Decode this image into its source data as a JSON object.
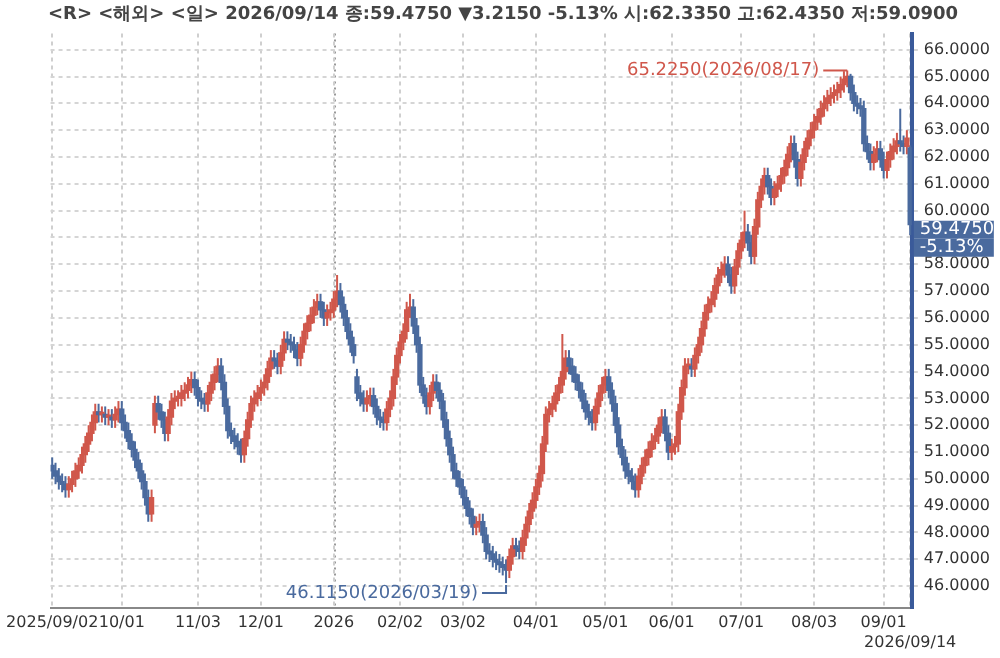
{
  "chart_data": {
    "type": "candlestick",
    "title": "<R> <해외> <일> 2026/09/14 종:59.4750 ▼3.2150 -5.13% 시:62.3350 고:62.4350 저:59.0900",
    "categories": [
      "2025/09/02",
      null,
      null,
      null,
      null,
      null,
      null,
      null,
      null,
      null,
      null,
      null,
      null,
      null,
      null,
      null,
      null,
      null,
      null,
      null,
      null,
      "10/01",
      null,
      null,
      null,
      null,
      null,
      null,
      null,
      null,
      null,
      null,
      null,
      null,
      null,
      null,
      null,
      null,
      null,
      null,
      null,
      null,
      null,
      null,
      "11/03",
      null,
      null,
      null,
      null,
      null,
      null,
      null,
      null,
      null,
      null,
      null,
      null,
      null,
      null,
      null,
      null,
      null,
      null,
      "12/01",
      null,
      null,
      null,
      null,
      null,
      null,
      null,
      null,
      null,
      null,
      null,
      null,
      null,
      null,
      null,
      null,
      null,
      null,
      null,
      null,
      null,
      "2026",
      null,
      null,
      null,
      null,
      null,
      null,
      null,
      null,
      null,
      null,
      null,
      null,
      null,
      null,
      null,
      null,
      null,
      null,
      null,
      "02/02",
      null,
      null,
      null,
      null,
      null,
      null,
      null,
      null,
      null,
      null,
      null,
      null,
      null,
      null,
      null,
      null,
      null,
      null,
      "03/02",
      null,
      null,
      null,
      null,
      null,
      null,
      null,
      null,
      null,
      null,
      null,
      null,
      null,
      null,
      null,
      null,
      null,
      null,
      null,
      null,
      null,
      "04/01",
      null,
      null,
      null,
      null,
      null,
      null,
      null,
      null,
      null,
      null,
      null,
      null,
      null,
      null,
      null,
      null,
      null,
      null,
      null,
      null,
      "05/01",
      null,
      null,
      null,
      null,
      null,
      null,
      null,
      null,
      null,
      null,
      null,
      null,
      null,
      null,
      null,
      null,
      null,
      null,
      null,
      "06/01",
      null,
      null,
      null,
      null,
      null,
      null,
      null,
      null,
      null,
      null,
      null,
      null,
      null,
      null,
      null,
      null,
      null,
      null,
      null,
      null,
      "07/01",
      null,
      null,
      null,
      null,
      null,
      null,
      null,
      null,
      null,
      null,
      null,
      null,
      null,
      null,
      null,
      null,
      null,
      null,
      null,
      null,
      null,
      "08/03",
      null,
      null,
      null,
      null,
      null,
      null,
      null,
      null,
      null,
      null,
      null,
      null,
      null,
      null,
      null,
      null,
      null,
      null,
      null,
      null,
      "09/01",
      null,
      null,
      null,
      null,
      null,
      null,
      null,
      "2026/09/14"
    ],
    "ohlc": [
      [
        50.5,
        50.8,
        50.0,
        50.3
      ],
      [
        50.3,
        50.6,
        49.8,
        50.1
      ],
      [
        50.1,
        50.4,
        49.6,
        49.9
      ],
      [
        49.9,
        50.2,
        49.5,
        49.8
      ],
      [
        49.8,
        50.1,
        49.3,
        49.6
      ],
      [
        49.6,
        50.1,
        49.3,
        49.8
      ],
      [
        49.8,
        50.3,
        49.5,
        50.0
      ],
      [
        50.0,
        50.6,
        49.7,
        50.3
      ],
      [
        50.3,
        50.8,
        50.0,
        50.5
      ],
      [
        50.5,
        51.2,
        50.2,
        50.9
      ],
      [
        50.9,
        51.6,
        50.6,
        51.3
      ],
      [
        51.3,
        52.0,
        51.0,
        51.7
      ],
      [
        51.7,
        52.4,
        51.4,
        52.1
      ],
      [
        52.1,
        52.8,
        51.8,
        52.5
      ],
      [
        52.5,
        52.8,
        52.1,
        52.4
      ],
      [
        52.4,
        52.7,
        52.1,
        52.4
      ],
      [
        52.4,
        52.7,
        52.0,
        52.3
      ],
      [
        52.3,
        52.6,
        52.0,
        52.3
      ],
      [
        52.3,
        52.6,
        51.9,
        52.2
      ],
      [
        52.2,
        52.7,
        51.9,
        52.4
      ],
      [
        52.4,
        52.9,
        52.1,
        52.6
      ],
      [
        52.6,
        52.9,
        51.8,
        52.1
      ],
      [
        52.1,
        52.4,
        51.5,
        51.8
      ],
      [
        51.8,
        52.1,
        51.1,
        51.4
      ],
      [
        51.4,
        51.7,
        50.8,
        51.1
      ],
      [
        51.1,
        51.4,
        50.4,
        50.7
      ],
      [
        50.7,
        51.0,
        50.0,
        50.3
      ],
      [
        50.3,
        50.6,
        49.6,
        49.9
      ],
      [
        49.9,
        50.2,
        49.0,
        49.3
      ],
      [
        49.3,
        49.6,
        48.4,
        48.7
      ],
      [
        48.7,
        49.6,
        48.4,
        49.3
      ],
      [
        52.0,
        53.1,
        51.7,
        52.8
      ],
      [
        52.8,
        53.1,
        52.2,
        52.5
      ],
      [
        52.5,
        52.8,
        51.9,
        52.2
      ],
      [
        52.2,
        52.5,
        51.4,
        51.7
      ],
      [
        51.7,
        52.6,
        51.4,
        52.3
      ],
      [
        52.3,
        53.2,
        52.0,
        52.9
      ],
      [
        52.9,
        53.3,
        52.6,
        53.0
      ],
      [
        53.0,
        53.3,
        52.7,
        53.0
      ],
      [
        53.0,
        53.5,
        52.7,
        53.2
      ],
      [
        53.2,
        53.6,
        52.9,
        53.3
      ],
      [
        53.3,
        53.8,
        53.0,
        53.5
      ],
      [
        53.5,
        54.0,
        53.2,
        53.7
      ],
      [
        53.7,
        54.0,
        53.1,
        53.4
      ],
      [
        53.4,
        53.7,
        52.7,
        53.0
      ],
      [
        53.0,
        53.3,
        52.6,
        52.9
      ],
      [
        52.9,
        53.2,
        52.5,
        52.8
      ],
      [
        52.8,
        53.5,
        52.5,
        53.2
      ],
      [
        53.2,
        53.9,
        52.9,
        53.6
      ],
      [
        53.6,
        54.2,
        53.3,
        53.9
      ],
      [
        53.9,
        54.5,
        53.6,
        54.2
      ],
      [
        54.2,
        54.5,
        53.3,
        53.6
      ],
      [
        53.6,
        53.9,
        52.4,
        52.7
      ],
      [
        52.7,
        53.0,
        51.5,
        51.8
      ],
      [
        51.8,
        52.1,
        51.3,
        51.6
      ],
      [
        51.6,
        51.9,
        51.1,
        51.4
      ],
      [
        51.4,
        51.7,
        50.9,
        51.2
      ],
      [
        51.2,
        51.5,
        50.6,
        50.9
      ],
      [
        50.9,
        51.8,
        50.6,
        51.5
      ],
      [
        51.5,
        52.5,
        51.2,
        52.2
      ],
      [
        52.2,
        53.1,
        51.9,
        52.8
      ],
      [
        52.8,
        53.3,
        52.5,
        53.0
      ],
      [
        53.0,
        53.5,
        52.7,
        53.2
      ],
      [
        53.2,
        53.7,
        52.9,
        53.4
      ],
      [
        53.4,
        53.9,
        53.1,
        53.6
      ],
      [
        53.6,
        54.4,
        53.3,
        54.1
      ],
      [
        54.1,
        54.8,
        53.8,
        54.5
      ],
      [
        54.5,
        54.8,
        54.1,
        54.4
      ],
      [
        54.4,
        54.7,
        53.9,
        54.2
      ],
      [
        54.2,
        55.0,
        53.9,
        54.7
      ],
      [
        54.7,
        55.5,
        54.4,
        55.2
      ],
      [
        55.2,
        55.5,
        54.8,
        55.1
      ],
      [
        55.1,
        55.4,
        54.7,
        55.0
      ],
      [
        55.0,
        55.3,
        54.5,
        54.8
      ],
      [
        54.8,
        55.1,
        54.2,
        54.5
      ],
      [
        54.5,
        55.3,
        54.2,
        55.0
      ],
      [
        55.0,
        55.8,
        54.7,
        55.5
      ],
      [
        55.5,
        56.1,
        55.2,
        55.8
      ],
      [
        55.8,
        56.4,
        55.5,
        56.1
      ],
      [
        56.1,
        56.7,
        55.8,
        56.4
      ],
      [
        56.4,
        56.9,
        56.1,
        56.6
      ],
      [
        56.6,
        56.9,
        56.0,
        56.3
      ],
      [
        56.3,
        56.6,
        55.7,
        56.0
      ],
      [
        56.0,
        56.5,
        55.7,
        56.2
      ],
      [
        56.2,
        56.6,
        55.9,
        56.3
      ],
      [
        56.3,
        57.0,
        56.0,
        56.7
      ],
      [
        56.7,
        57.6,
        56.4,
        57.0
      ],
      [
        57.0,
        57.3,
        56.2,
        56.5
      ],
      [
        56.5,
        56.8,
        55.7,
        56.0
      ],
      [
        56.0,
        56.3,
        55.2,
        55.5
      ],
      [
        55.5,
        55.8,
        54.7,
        55.0
      ],
      [
        55.0,
        55.3,
        54.3,
        54.6
      ],
      [
        53.8,
        54.1,
        52.9,
        53.2
      ],
      [
        53.2,
        53.5,
        52.7,
        53.0
      ],
      [
        53.0,
        53.3,
        52.5,
        52.8
      ],
      [
        52.8,
        53.3,
        52.5,
        53.0
      ],
      [
        53.0,
        53.4,
        52.7,
        53.1
      ],
      [
        53.1,
        53.4,
        52.4,
        52.7
      ],
      [
        52.7,
        53.0,
        52.0,
        52.3
      ],
      [
        52.3,
        52.6,
        51.9,
        52.2
      ],
      [
        52.2,
        52.5,
        51.8,
        52.1
      ],
      [
        52.1,
        52.9,
        51.8,
        52.6
      ],
      [
        52.6,
        53.3,
        52.3,
        53.0
      ],
      [
        53.0,
        54.1,
        52.7,
        53.8
      ],
      [
        53.8,
        54.9,
        53.5,
        54.6
      ],
      [
        54.6,
        55.4,
        54.3,
        55.1
      ],
      [
        55.1,
        55.8,
        54.8,
        55.5
      ],
      [
        55.5,
        56.6,
        55.2,
        56.3
      ],
      [
        56.3,
        56.9,
        56.0,
        56.4
      ],
      [
        56.4,
        56.7,
        55.4,
        55.7
      ],
      [
        55.7,
        56.0,
        54.7,
        55.0
      ],
      [
        55.0,
        55.3,
        53.2,
        53.5
      ],
      [
        53.5,
        53.8,
        52.8,
        53.1
      ],
      [
        53.1,
        53.4,
        52.4,
        52.7
      ],
      [
        52.7,
        53.5,
        52.4,
        53.2
      ],
      [
        53.2,
        53.9,
        52.9,
        53.6
      ],
      [
        53.6,
        53.9,
        53.0,
        53.3
      ],
      [
        53.3,
        53.6,
        52.6,
        52.9
      ],
      [
        52.9,
        53.2,
        51.9,
        52.2
      ],
      [
        52.2,
        52.5,
        51.2,
        51.5
      ],
      [
        51.5,
        51.8,
        50.6,
        50.9
      ],
      [
        50.9,
        51.2,
        50.0,
        50.3
      ],
      [
        50.3,
        50.6,
        49.7,
        50.0
      ],
      [
        50.0,
        50.3,
        49.4,
        49.7
      ],
      [
        49.7,
        50.0,
        49.0,
        49.3
      ],
      [
        49.3,
        49.6,
        48.6,
        48.9
      ],
      [
        48.9,
        49.2,
        48.3,
        48.6
      ],
      [
        48.6,
        48.9,
        47.9,
        48.2
      ],
      [
        48.2,
        48.6,
        47.9,
        48.3
      ],
      [
        48.3,
        48.7,
        48.0,
        48.4
      ],
      [
        48.4,
        48.7,
        47.6,
        47.9
      ],
      [
        47.9,
        48.2,
        47.0,
        47.3
      ],
      [
        47.3,
        47.6,
        46.9,
        47.2
      ],
      [
        47.2,
        47.5,
        46.7,
        47.0
      ],
      [
        47.0,
        47.3,
        46.6,
        46.9
      ],
      [
        46.9,
        47.2,
        46.5,
        46.8
      ],
      [
        46.8,
        47.1,
        46.4,
        46.7
      ],
      [
        46.7,
        47.0,
        46.115,
        46.6
      ],
      [
        46.6,
        47.4,
        46.3,
        47.1
      ],
      [
        47.1,
        47.8,
        46.8,
        47.5
      ],
      [
        47.5,
        47.8,
        47.1,
        47.4
      ],
      [
        47.4,
        47.7,
        47.0,
        47.3
      ],
      [
        47.3,
        48.1,
        47.0,
        47.8
      ],
      [
        47.8,
        48.6,
        47.5,
        48.3
      ],
      [
        48.3,
        49.1,
        48.0,
        48.8
      ],
      [
        48.8,
        49.5,
        48.5,
        49.2
      ],
      [
        49.2,
        50.0,
        48.9,
        49.7
      ],
      [
        49.7,
        50.5,
        49.4,
        50.2
      ],
      [
        50.2,
        51.6,
        49.9,
        51.3
      ],
      [
        51.3,
        52.7,
        51.0,
        52.4
      ],
      [
        52.4,
        52.9,
        52.1,
        52.6
      ],
      [
        52.6,
        53.1,
        52.3,
        52.8
      ],
      [
        52.8,
        53.5,
        52.5,
        53.2
      ],
      [
        53.2,
        53.8,
        52.9,
        53.5
      ],
      [
        53.5,
        55.4,
        53.2,
        54.0
      ],
      [
        54.0,
        54.8,
        53.7,
        54.5
      ],
      [
        54.5,
        54.8,
        53.9,
        54.2
      ],
      [
        54.2,
        54.5,
        53.6,
        53.9
      ],
      [
        53.9,
        54.2,
        53.3,
        53.6
      ],
      [
        53.6,
        53.9,
        53.0,
        53.3
      ],
      [
        53.3,
        53.6,
        52.6,
        52.9
      ],
      [
        52.9,
        53.2,
        52.2,
        52.5
      ],
      [
        52.5,
        52.8,
        52.0,
        52.3
      ],
      [
        52.3,
        52.6,
        51.8,
        52.1
      ],
      [
        52.1,
        53.0,
        51.8,
        52.7
      ],
      [
        52.7,
        53.5,
        52.4,
        53.2
      ],
      [
        53.2,
        53.8,
        52.9,
        53.5
      ],
      [
        53.5,
        54.1,
        53.2,
        53.8
      ],
      [
        53.8,
        54.1,
        53.0,
        53.3
      ],
      [
        53.3,
        53.6,
        52.5,
        52.8
      ],
      [
        52.8,
        53.1,
        51.7,
        52.0
      ],
      [
        52.0,
        52.3,
        50.9,
        51.2
      ],
      [
        51.2,
        51.5,
        50.5,
        50.8
      ],
      [
        50.8,
        51.1,
        50.0,
        50.3
      ],
      [
        50.3,
        50.6,
        49.8,
        50.1
      ],
      [
        50.1,
        50.4,
        49.6,
        49.9
      ],
      [
        49.9,
        50.2,
        49.3,
        49.6
      ],
      [
        49.6,
        50.4,
        49.3,
        50.1
      ],
      [
        50.1,
        50.8,
        49.8,
        50.5
      ],
      [
        50.5,
        51.1,
        50.2,
        50.8
      ],
      [
        50.8,
        51.4,
        50.5,
        51.1
      ],
      [
        51.1,
        51.7,
        50.8,
        51.4
      ],
      [
        51.4,
        51.9,
        51.1,
        51.6
      ],
      [
        51.6,
        52.3,
        51.3,
        52.0
      ],
      [
        52.0,
        52.6,
        51.7,
        52.3
      ],
      [
        52.3,
        52.6,
        51.4,
        51.7
      ],
      [
        51.7,
        52.0,
        50.7,
        51.0
      ],
      [
        51.0,
        51.5,
        50.7,
        51.2
      ],
      [
        51.2,
        51.6,
        50.9,
        51.3
      ],
      [
        51.3,
        52.8,
        51.0,
        52.5
      ],
      [
        52.5,
        53.7,
        52.2,
        53.4
      ],
      [
        53.4,
        54.5,
        53.1,
        54.2
      ],
      [
        54.2,
        54.5,
        53.9,
        54.2
      ],
      [
        54.2,
        54.5,
        53.8,
        54.1
      ],
      [
        54.1,
        54.9,
        53.8,
        54.6
      ],
      [
        54.6,
        55.3,
        54.3,
        55.0
      ],
      [
        55.0,
        55.9,
        54.7,
        55.6
      ],
      [
        55.6,
        56.5,
        55.3,
        56.2
      ],
      [
        56.2,
        56.8,
        55.9,
        56.5
      ],
      [
        56.5,
        57.0,
        56.2,
        56.7
      ],
      [
        56.7,
        57.5,
        56.4,
        57.2
      ],
      [
        57.2,
        57.9,
        56.9,
        57.6
      ],
      [
        57.6,
        58.1,
        57.3,
        57.8
      ],
      [
        57.8,
        58.3,
        57.5,
        58.0
      ],
      [
        58.0,
        58.3,
        57.3,
        57.6
      ],
      [
        57.6,
        57.9,
        56.9,
        57.2
      ],
      [
        57.2,
        58.2,
        56.9,
        57.9
      ],
      [
        57.9,
        58.8,
        57.6,
        58.5
      ],
      [
        58.5,
        59.2,
        58.2,
        58.9
      ],
      [
        58.9,
        60.0,
        58.6,
        59.2
      ],
      [
        59.2,
        59.5,
        58.5,
        58.8
      ],
      [
        58.8,
        59.1,
        58.0,
        58.3
      ],
      [
        58.3,
        59.7,
        58.0,
        59.4
      ],
      [
        59.4,
        60.7,
        59.1,
        60.4
      ],
      [
        60.4,
        61.2,
        60.1,
        60.9
      ],
      [
        60.9,
        61.6,
        60.6,
        61.3
      ],
      [
        61.3,
        61.6,
        60.6,
        60.9
      ],
      [
        60.9,
        61.2,
        60.2,
        60.5
      ],
      [
        60.5,
        61.1,
        60.2,
        60.8
      ],
      [
        60.8,
        61.3,
        60.5,
        61.0
      ],
      [
        61.0,
        61.6,
        60.7,
        61.3
      ],
      [
        61.3,
        61.9,
        61.0,
        61.6
      ],
      [
        61.6,
        62.4,
        61.3,
        62.1
      ],
      [
        62.1,
        62.8,
        61.8,
        62.5
      ],
      [
        62.5,
        62.8,
        61.6,
        61.9
      ],
      [
        61.9,
        62.2,
        60.9,
        61.2
      ],
      [
        61.2,
        62.1,
        60.9,
        61.8
      ],
      [
        61.8,
        62.6,
        61.5,
        62.3
      ],
      [
        62.3,
        63.0,
        62.0,
        62.7
      ],
      [
        62.7,
        63.3,
        62.4,
        63.0
      ],
      [
        63.0,
        63.6,
        62.7,
        63.3
      ],
      [
        63.3,
        63.8,
        63.0,
        63.5
      ],
      [
        63.5,
        64.1,
        63.2,
        63.8
      ],
      [
        63.8,
        64.3,
        63.5,
        64.0
      ],
      [
        64.0,
        64.5,
        63.7,
        64.2
      ],
      [
        64.2,
        64.6,
        63.9,
        64.3
      ],
      [
        64.3,
        64.7,
        64.0,
        64.4
      ],
      [
        64.4,
        64.8,
        64.1,
        64.5
      ],
      [
        64.5,
        65.0,
        64.2,
        64.7
      ],
      [
        64.7,
        65.2,
        64.4,
        64.9
      ],
      [
        64.8,
        65.225,
        64.6,
        65.0
      ],
      [
        65.0,
        65.1,
        64.1,
        64.4
      ],
      [
        64.4,
        64.7,
        63.7,
        64.0
      ],
      [
        64.0,
        64.3,
        63.6,
        63.9
      ],
      [
        63.9,
        64.2,
        63.5,
        63.8
      ],
      [
        63.8,
        64.1,
        62.2,
        62.5
      ],
      [
        62.5,
        62.8,
        61.9,
        62.2
      ],
      [
        62.2,
        62.5,
        61.5,
        61.8
      ],
      [
        61.8,
        62.4,
        61.5,
        62.1
      ],
      [
        62.1,
        62.6,
        61.8,
        62.3
      ],
      [
        62.3,
        62.6,
        61.6,
        61.9
      ],
      [
        61.9,
        62.2,
        61.2,
        61.5
      ],
      [
        61.5,
        62.2,
        61.2,
        61.9
      ],
      [
        61.9,
        62.5,
        61.6,
        62.2
      ],
      [
        62.2,
        62.7,
        61.9,
        62.4
      ],
      [
        62.4,
        62.9,
        62.1,
        62.6
      ],
      [
        62.6,
        63.8,
        62.2,
        62.5
      ],
      [
        62.5,
        62.8,
        62.1,
        62.4
      ],
      [
        62.4,
        63.0,
        62.1,
        62.7
      ],
      [
        62.335,
        62.435,
        59.09,
        59.475
      ]
    ],
    "colors": [
      "#4a6a9e",
      "#4a6a9e",
      "#4a6a9e",
      "#4a6a9e",
      "#4a6a9e",
      "#d0574b",
      "#d0574b",
      "#d0574b",
      "#d0574b",
      "#d0574b",
      "#d0574b",
      "#d0574b",
      "#d0574b",
      "#d0574b",
      "#4a6a9e",
      "#d0574b",
      "#4a6a9e",
      "#d0574b",
      "#4a6a9e",
      "#d0574b",
      "#d0574b",
      "#4a6a9e",
      "#4a6a9e",
      "#4a6a9e",
      "#4a6a9e",
      "#4a6a9e",
      "#4a6a9e",
      "#4a6a9e",
      "#4a6a9e",
      "#4a6a9e",
      "#d0574b",
      "#d0574b",
      "#4a6a9e",
      "#4a6a9e",
      "#4a6a9e",
      "#d0574b",
      "#d0574b",
      "#d0574b",
      "#d0574b",
      "#d0574b",
      "#d0574b",
      "#d0574b",
      "#d0574b",
      "#4a6a9e",
      "#4a6a9e",
      "#4a6a9e",
      "#4a6a9e",
      "#d0574b",
      "#d0574b",
      "#d0574b",
      "#d0574b",
      "#4a6a9e",
      "#4a6a9e",
      "#4a6a9e",
      "#4a6a9e",
      "#4a6a9e",
      "#4a6a9e",
      "#4a6a9e",
      "#d0574b",
      "#d0574b",
      "#d0574b",
      "#d0574b",
      "#d0574b",
      "#d0574b",
      "#d0574b",
      "#d0574b",
      "#d0574b",
      "#4a6a9e",
      "#4a6a9e",
      "#d0574b",
      "#d0574b",
      "#4a6a9e",
      "#4a6a9e",
      "#4a6a9e",
      "#4a6a9e",
      "#d0574b",
      "#d0574b",
      "#d0574b",
      "#d0574b",
      "#d0574b",
      "#d0574b",
      "#4a6a9e",
      "#4a6a9e",
      "#d0574b",
      "#d0574b",
      "#d0574b",
      "#d0574b",
      "#4a6a9e",
      "#4a6a9e",
      "#4a6a9e",
      "#4a6a9e",
      "#4a6a9e",
      "#4a6a9e",
      "#4a6a9e",
      "#4a6a9e",
      "#d0574b",
      "#d0574b",
      "#4a6a9e",
      "#4a6a9e",
      "#4a6a9e",
      "#4a6a9e",
      "#d0574b",
      "#d0574b",
      "#d0574b",
      "#d0574b",
      "#d0574b",
      "#d0574b",
      "#d0574b",
      "#d0574b",
      "#4a6a9e",
      "#4a6a9e",
      "#4a6a9e",
      "#4a6a9e",
      "#4a6a9e",
      "#d0574b",
      "#d0574b",
      "#4a6a9e",
      "#4a6a9e",
      "#4a6a9e",
      "#4a6a9e",
      "#4a6a9e",
      "#4a6a9e",
      "#4a6a9e",
      "#4a6a9e",
      "#4a6a9e",
      "#4a6a9e",
      "#4a6a9e",
      "#4a6a9e",
      "#d0574b",
      "#d0574b",
      "#4a6a9e",
      "#4a6a9e",
      "#4a6a9e",
      "#4a6a9e",
      "#4a6a9e",
      "#4a6a9e",
      "#4a6a9e",
      "#4a6a9e",
      "#d0574b",
      "#d0574b",
      "#4a6a9e",
      "#4a6a9e",
      "#d0574b",
      "#d0574b",
      "#d0574b",
      "#d0574b",
      "#d0574b",
      "#d0574b",
      "#d0574b",
      "#d0574b",
      "#d0574b",
      "#d0574b",
      "#d0574b",
      "#d0574b",
      "#d0574b",
      "#d0574b",
      "#4a6a9e",
      "#4a6a9e",
      "#4a6a9e",
      "#4a6a9e",
      "#4a6a9e",
      "#4a6a9e",
      "#4a6a9e",
      "#4a6a9e",
      "#d0574b",
      "#d0574b",
      "#d0574b",
      "#d0574b",
      "#4a6a9e",
      "#4a6a9e",
      "#4a6a9e",
      "#4a6a9e",
      "#4a6a9e",
      "#4a6a9e",
      "#4a6a9e",
      "#4a6a9e",
      "#4a6a9e",
      "#d0574b",
      "#d0574b",
      "#d0574b",
      "#d0574b",
      "#d0574b",
      "#d0574b",
      "#d0574b",
      "#d0574b",
      "#4a6a9e",
      "#4a6a9e",
      "#d0574b",
      "#d0574b",
      "#d0574b",
      "#d0574b",
      "#d0574b",
      "#d0574b",
      "#4a6a9e",
      "#d0574b",
      "#d0574b",
      "#d0574b",
      "#d0574b",
      "#d0574b",
      "#d0574b",
      "#d0574b",
      "#d0574b",
      "#d0574b",
      "#d0574b",
      "#4a6a9e",
      "#4a6a9e",
      "#d0574b",
      "#d0574b",
      "#d0574b",
      "#d0574b",
      "#4a6a9e",
      "#4a6a9e",
      "#d0574b",
      "#d0574b",
      "#d0574b",
      "#d0574b",
      "#4a6a9e",
      "#4a6a9e",
      "#d0574b",
      "#d0574b",
      "#d0574b",
      "#d0574b",
      "#d0574b",
      "#d0574b",
      "#4a6a9e",
      "#4a6a9e",
      "#d0574b",
      "#d0574b",
      "#d0574b",
      "#d0574b",
      "#d0574b",
      "#d0574b",
      "#d0574b",
      "#d0574b",
      "#d0574b",
      "#d0574b",
      "#d0574b",
      "#d0574b",
      "#d0574b",
      "#d0574b",
      "#d0574b",
      "#4a6a9e",
      "#4a6a9e",
      "#4a6a9e",
      "#4a6a9e",
      "#4a6a9e",
      "#4a6a9e",
      "#4a6a9e",
      "#d0574b",
      "#d0574b",
      "#4a6a9e",
      "#4a6a9e",
      "#d0574b",
      "#d0574b",
      "#d0574b",
      "#d0574b",
      "#4a6a9e",
      "#4a6a9e",
      "#d0574b",
      "#4a6a9e"
    ],
    "ylim": [
      45.2,
      66.6
    ],
    "yticks": [
      {
        "value": 46,
        "label": "46.0000"
      },
      {
        "value": 47,
        "label": "47.0000"
      },
      {
        "value": 48,
        "label": "48.0000"
      },
      {
        "value": 49,
        "label": "49.0000"
      },
      {
        "value": 50,
        "label": "50.0000"
      },
      {
        "value": 51,
        "label": "51.0000"
      },
      {
        "value": 52,
        "label": "52.0000"
      },
      {
        "value": 53,
        "label": "53.0000"
      },
      {
        "value": 54,
        "label": "54.0000"
      },
      {
        "value": 55,
        "label": "55.0000"
      },
      {
        "value": 56,
        "label": "56.0000"
      },
      {
        "value": 57,
        "label": "57.0000"
      },
      {
        "value": 58,
        "label": "58.0000"
      },
      {
        "value": 59,
        "label": null
      },
      {
        "value": 60,
        "label": "60.0000"
      },
      {
        "value": 61,
        "label": "61.0000"
      },
      {
        "value": 62,
        "label": "62.0000"
      },
      {
        "value": 63,
        "label": "63.0000"
      },
      {
        "value": 64,
        "label": "64.0000"
      },
      {
        "value": 65,
        "label": "65.0000"
      },
      {
        "value": 66,
        "label": "66.0000"
      }
    ],
    "ref_lines": [
      {
        "axis": "x",
        "value": "2026",
        "color": "#999999",
        "line_style": "dotted"
      }
    ],
    "annotations": [
      "65.2250(2026/08/17)",
      "46.1150(2026/03/19)",
      "59.4750",
      "-5.13%"
    ],
    "grid": true,
    "legend": false
  }
}
